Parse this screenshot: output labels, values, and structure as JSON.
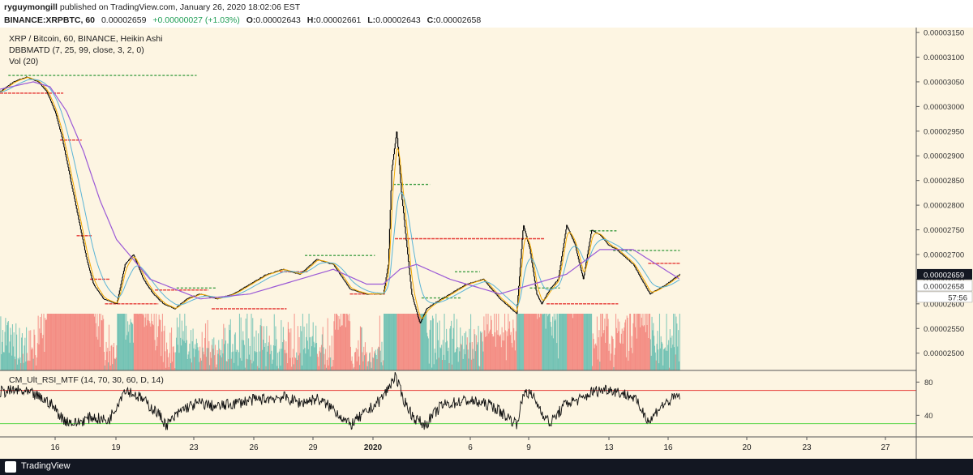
{
  "header": {
    "author": "ryguymongill",
    "published": "published on TradingView.com, January 26, 2020 18:02:06 EST",
    "symbol": "BINANCE:XRPBTC, 60",
    "last_price": "0.00002659",
    "change": "+0.00000027 (+1.03%)",
    "o_label": "O:",
    "o_value": "0.00002643",
    "h_label": "H:",
    "h_value": "0.00002661",
    "l_label": "L:",
    "l_value": "0.00002643",
    "c_label": "C:",
    "c_value": "0.00002658"
  },
  "footer": {
    "brand": "TradingView"
  },
  "chart_data": [
    {
      "type": "candlestick",
      "legend_lines": [
        "XRP / Bitcoin, 60, BINANCE, Heikin Ashi",
        "DBBMATD (7, 25, 99, close, 3, 2, 0)",
        "Vol (20)"
      ],
      "x_ticks": [
        "16",
        "19",
        "23",
        "26",
        "29",
        "2020",
        "6",
        "9",
        "13",
        "16",
        "20",
        "23",
        "27"
      ],
      "y_ticks": [
        "0.00003150",
        "0.00003100",
        "0.00003050",
        "0.00003000",
        "0.00002950",
        "0.00002900",
        "0.00002850",
        "0.00002800",
        "0.00002750",
        "0.00002700",
        "0.00002650",
        "0.00002600",
        "0.00002550",
        "0.00002500"
      ],
      "ylim": [
        2.465e-05,
        3.16e-05
      ],
      "price_labels": {
        "last": "0.00002659",
        "close": "0.00002658",
        "countdown": "57:56"
      },
      "colors": {
        "up": "#26a69a",
        "down": "#ef5350",
        "candle": "#000000",
        "ma_fast": "#f2a900",
        "ma_mid": "#5ab4d6",
        "ma_slow": "#9b59d6",
        "support": "#e53935",
        "resistance": "#43a047"
      },
      "series": [
        {
          "name": "close_approx",
          "day": [
            13.0,
            13.8,
            14.6,
            15.3,
            15.8,
            16.3,
            16.7,
            17.0,
            17.3,
            17.6,
            17.9,
            18.2,
            18.6,
            19.2,
            20.0,
            20.5,
            21.0,
            21.6,
            22.2,
            22.8,
            23.5,
            24.2,
            25.0,
            26.0,
            27.0,
            28.0,
            29.0,
            30.0,
            31.0,
            32.0,
            33.0,
            34.0,
            35.0,
            36.0,
            36.3,
            36.5,
            36.8,
            37.1,
            37.4,
            37.7,
            38.2,
            38.6,
            39.0,
            39.5,
            40.0,
            41.0,
            42.0,
            43.0,
            44.0,
            44.4,
            44.8,
            45.2,
            45.5,
            46.0,
            46.5,
            47.0,
            47.5,
            48.0,
            48.5,
            49.0,
            49.5,
            50.0,
            51.0,
            52.0,
            52.5,
            53.0,
            53.8
          ],
          "close": [
            3.03e-05,
            3.05e-05,
            3.06e-05,
            3.05e-05,
            3.03e-05,
            2.99e-05,
            2.94e-05,
            2.89e-05,
            2.84e-05,
            2.79e-05,
            2.74e-05,
            2.69e-05,
            2.64e-05,
            2.61e-05,
            2.6e-05,
            2.68e-05,
            2.7e-05,
            2.65e-05,
            2.62e-05,
            2.6e-05,
            2.59e-05,
            2.61e-05,
            2.62e-05,
            2.61e-05,
            2.62e-05,
            2.64e-05,
            2.66e-05,
            2.67e-05,
            2.66e-05,
            2.69e-05,
            2.68e-05,
            2.63e-05,
            2.62e-05,
            2.62e-05,
            2.68e-05,
            2.87e-05,
            2.95e-05,
            2.82e-05,
            2.72e-05,
            2.62e-05,
            2.56e-05,
            2.59e-05,
            2.6e-05,
            2.61e-05,
            2.62e-05,
            2.64e-05,
            2.65e-05,
            2.61e-05,
            2.58e-05,
            2.76e-05,
            2.71e-05,
            2.62e-05,
            2.6e-05,
            2.63e-05,
            2.65e-05,
            2.76e-05,
            2.72e-05,
            2.65e-05,
            2.75e-05,
            2.74e-05,
            2.72e-05,
            2.71e-05,
            2.68e-05,
            2.62e-05,
            2.63e-05,
            2.64e-05,
            2.66e-05
          ]
        },
        {
          "name": "ma_slow_approx",
          "day": [
            13.0,
            15.0,
            16.0,
            17.0,
            18.0,
            19.0,
            20.0,
            22.0,
            25.0,
            28.0,
            31.0,
            33.0,
            35.0,
            36.0,
            37.0,
            38.0,
            40.0,
            43.0,
            45.0,
            47.0,
            49.0,
            51.0,
            53.8
          ],
          "value": [
            3.035e-05,
            3.05e-05,
            3.04e-05,
            2.99e-05,
            2.91e-05,
            2.81e-05,
            2.73e-05,
            2.65e-05,
            2.61e-05,
            2.62e-05,
            2.65e-05,
            2.67e-05,
            2.64e-05,
            2.64e-05,
            2.67e-05,
            2.68e-05,
            2.65e-05,
            2.62e-05,
            2.64e-05,
            2.66e-05,
            2.71e-05,
            2.71e-05,
            2.65e-05
          ]
        }
      ],
      "levels": [
        {
          "kind": "resistance",
          "value": 3.063e-05,
          "from_day": 13.5,
          "to_day": 24.8
        },
        {
          "kind": "support",
          "value": 3.027e-05,
          "from_day": 13.0,
          "to_day": 16.8
        },
        {
          "kind": "support",
          "value": 2.932e-05,
          "from_day": 16.6,
          "to_day": 17.9
        },
        {
          "kind": "support",
          "value": 2.738e-05,
          "from_day": 17.6,
          "to_day": 18.5
        },
        {
          "kind": "support",
          "value": 2.65e-05,
          "from_day": 18.4,
          "to_day": 19.6
        },
        {
          "kind": "support",
          "value": 2.6e-05,
          "from_day": 19.3,
          "to_day": 22.5
        },
        {
          "kind": "support",
          "value": 2.628e-05,
          "from_day": 22.3,
          "to_day": 25.5
        },
        {
          "kind": "resistance",
          "value": 2.632e-05,
          "from_day": 23.6,
          "to_day": 26.0
        },
        {
          "kind": "support",
          "value": 2.59e-05,
          "from_day": 25.7,
          "to_day": 30.2
        },
        {
          "kind": "support",
          "value": 2.665e-05,
          "from_day": 29.8,
          "to_day": 31.5
        },
        {
          "kind": "resistance",
          "value": 2.698e-05,
          "from_day": 31.3,
          "to_day": 35.5
        },
        {
          "kind": "support",
          "value": 2.62e-05,
          "from_day": 34.0,
          "to_day": 36.1
        },
        {
          "kind": "resistance",
          "value": 2.842e-05,
          "from_day": 36.6,
          "to_day": 38.8
        },
        {
          "kind": "support",
          "value": 2.732e-05,
          "from_day": 36.7,
          "to_day": 45.7
        },
        {
          "kind": "resistance",
          "value": 2.612e-05,
          "from_day": 38.3,
          "to_day": 40.7
        },
        {
          "kind": "resistance",
          "value": 2.665e-05,
          "from_day": 40.3,
          "to_day": 41.8
        },
        {
          "kind": "resistance",
          "value": 2.632e-05,
          "from_day": 44.8,
          "to_day": 46.6
        },
        {
          "kind": "support",
          "value": 2.6e-05,
          "from_day": 45.8,
          "to_day": 50.1
        },
        {
          "kind": "resistance",
          "value": 2.748e-05,
          "from_day": 48.4,
          "to_day": 50.0
        },
        {
          "kind": "resistance",
          "value": 2.708e-05,
          "from_day": 49.8,
          "to_day": 53.8
        },
        {
          "kind": "support",
          "value": 2.682e-05,
          "from_day": 51.9,
          "to_day": 53.8
        }
      ]
    },
    {
      "type": "line",
      "legend": "CM_Ult_RSI_MTF (14, 70, 30, 60, D, 14)",
      "y_ticks": [
        "80",
        "40"
      ],
      "ylim": [
        14,
        94
      ],
      "bands": {
        "upper": 70,
        "lower": 30
      },
      "series": [
        {
          "name": "rsi_approx",
          "day": [
            13.0,
            14.0,
            15.0,
            16.0,
            16.8,
            17.5,
            18.5,
            19.5,
            20.0,
            20.5,
            21.5,
            22.5,
            23.0,
            24.0,
            25.0,
            26.0,
            28.0,
            30.0,
            31.0,
            32.0,
            33.0,
            34.0,
            35.0,
            35.8,
            36.3,
            36.7,
            37.2,
            37.8,
            38.5,
            39.5,
            41.0,
            42.5,
            44.0,
            44.5,
            45.0,
            45.5,
            46.0,
            47.0,
            48.0,
            48.5,
            49.5,
            51.0,
            52.0,
            52.5,
            53.0,
            53.8
          ],
          "value": [
            68,
            70,
            65,
            55,
            35,
            30,
            38,
            33,
            52,
            72,
            60,
            42,
            28,
            48,
            55,
            50,
            58,
            62,
            55,
            60,
            48,
            28,
            44,
            58,
            72,
            88,
            60,
            38,
            28,
            52,
            58,
            52,
            30,
            70,
            62,
            45,
            30,
            55,
            60,
            68,
            72,
            62,
            32,
            48,
            55,
            65
          ]
        }
      ]
    }
  ]
}
